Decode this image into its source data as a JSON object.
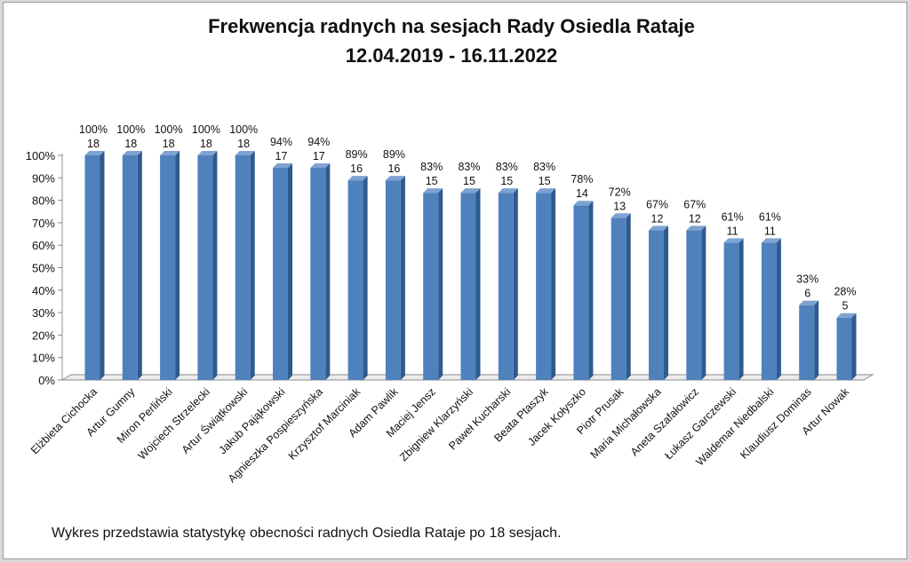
{
  "title": "Frekwencja radnych na sesjach Rady Osiedla Rataje",
  "subtitle": "12.04.2019 - 16.11.2022",
  "footnote": "Wykres przedstawia statystykę obecności radnych Osiedla Rataje po 18 sesjach.",
  "colors": {
    "bar_front": "#4f81bd",
    "bar_side": "#2e5a8e",
    "bar_top": "#7ea3d1",
    "axis": "#8c8c8c"
  },
  "chart_data": {
    "type": "bar",
    "categories": [
      "Elżbieta Cichocka",
      "Artur Gumny",
      "Miron Perliński",
      "Wojciech Strzelecki",
      "Artur Świątkowski",
      "Jakub Pająkowski",
      "Agnieszka Pospieszyńska",
      "Krzysztof Marciniak",
      "Adam Pawlik",
      "Maciej Jensz",
      "Zbigniew Klarzyński",
      "Paweł Kucharski",
      "Beata Ptaszyk",
      "Jacek Kołyszko",
      "Piotr Prusak",
      "Maria Michałowska",
      "Aneta Szafałowicz",
      "Łukasz Garczewski",
      "Waldemar Niedbalski",
      "Klaudiusz Dominas",
      "Artur Nowak"
    ],
    "percent_labels": [
      "100%",
      "100%",
      "100%",
      "100%",
      "100%",
      "94%",
      "94%",
      "89%",
      "89%",
      "83%",
      "83%",
      "83%",
      "83%",
      "78%",
      "72%",
      "67%",
      "67%",
      "61%",
      "61%",
      "33%",
      "28%"
    ],
    "values": [
      18,
      18,
      18,
      18,
      18,
      17,
      17,
      16,
      16,
      15,
      15,
      15,
      15,
      14,
      13,
      12,
      12,
      11,
      11,
      6,
      5
    ],
    "total_sessions": 18,
    "yticks": [
      "0%",
      "10%",
      "20%",
      "30%",
      "40%",
      "50%",
      "60%",
      "70%",
      "80%",
      "90%",
      "100%"
    ],
    "ylim": [
      0,
      100
    ],
    "grid": false,
    "legend": "none",
    "style": "3d-columns"
  }
}
